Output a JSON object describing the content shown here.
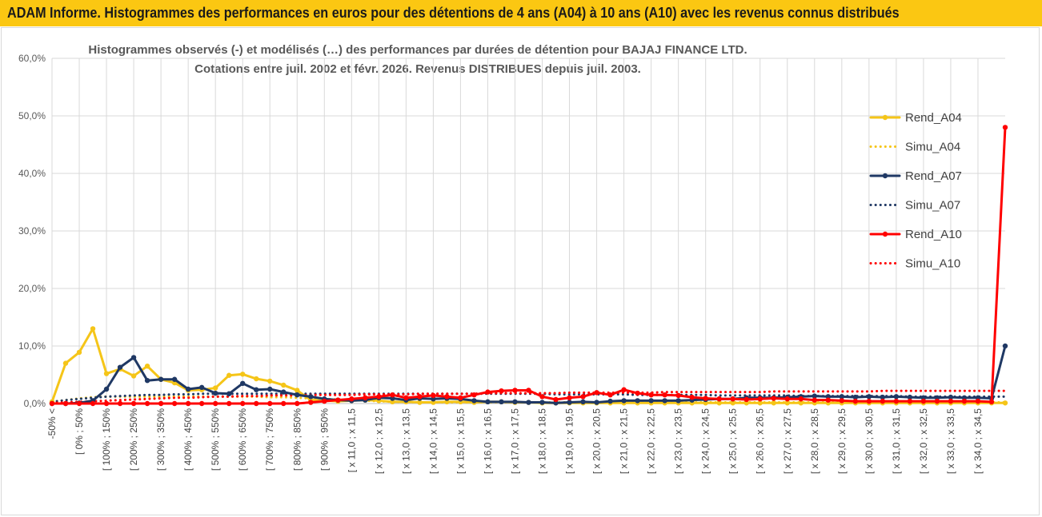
{
  "banner": {
    "text": "ADAM Informe. Histogrammes des performances en euros pour des détentions de 4 ans (A04) à 10 ans (A10) avec les revenus connus distribués",
    "color": "#fbc712"
  },
  "chart_data": {
    "type": "line",
    "title_lines": [
      "Histogrammes observés (-) et modélisés (…) des performances par durées de détention pour BAJAJ FINANCE LTD.",
      "Cotations entre juil. 2002 et févr. 2026. Revenus DISTRIBUES depuis juil. 2003."
    ],
    "ylim": [
      0,
      60
    ],
    "ytick_labels": [
      "0,0%",
      "10,0%",
      "20,0%",
      "30,0%",
      "40,0%",
      "50,0%",
      "60,0%"
    ],
    "grid": true,
    "legend_position": "right",
    "x_tick_labels": [
      "-50% <",
      "[ 0% ; 50%",
      "[ 100% ; 150%",
      "[ 200% ; 250%",
      "[ 300% ; 350%",
      "[ 400% ; 450%",
      "[ 500% ; 550%",
      "[ 600% ; 650%",
      "[ 700% ; 750%",
      "[ 800% ; 850%",
      "[ 900% ; 950%",
      "[ x 11,0 ; x 11,5",
      "[ x 12,0 ; x 12,5",
      "[ x 13,0 ; x 13,5",
      "[ x 14,0 ; x 14,5",
      "[ x 15,0 ; x 15,5",
      "[ x 16,0 ; x 16,5",
      "[ x 17,0 ; x 17,5",
      "[ x 18,0 ; x 18,5",
      "[ x 19,0 ; x 19,5",
      "[ x 20,0 ; x 20,5",
      "[ x 21,0 ; x 21,5",
      "[ x 22,0 ; x 22,5",
      "[ x 23,0 ; x 23,5",
      "[ x 24,0 ; x 24,5",
      "[ x 25,0 ; x 25,5",
      "[ x 26,0 ; x 26,5",
      "[ x 27,0 ; x 27,5",
      "[ x 28,0 ; x 28,5",
      "[ x 29,0 ; x 29,5",
      "[ x 30,0 ; x 30,5",
      "[ x 31,0 ; x 31,5",
      "[ x 32,0 ; x 32,5",
      "[ x 33,0 ; x 33,5",
      "[ x 34,0 ; x 34,5"
    ],
    "series": [
      {
        "name": "Rend_A04",
        "color": "#f5c518",
        "style": "solid",
        "values": [
          0.3,
          7.0,
          8.9,
          13.0,
          5.2,
          6.0,
          4.8,
          6.5,
          4.2,
          3.6,
          2.3,
          2.4,
          2.7,
          4.9,
          5.1,
          4.3,
          3.9,
          3.2,
          2.3,
          0.6,
          0.5,
          0.4,
          0.5,
          0.6,
          0.5,
          0.3,
          0.3,
          0.2,
          0.2,
          0.3,
          0.3,
          0.2,
          0.3,
          0.3,
          0.2,
          0.2,
          0.1,
          0.1,
          0.1,
          0.1,
          0.1,
          0.1,
          0.1,
          0.1,
          0.1,
          0.1,
          0.1,
          0.1,
          0.1,
          0.1,
          0.1,
          0.1,
          0.1,
          0.1,
          0.1,
          0.1,
          0.1,
          0.1,
          0.1,
          0.1,
          0.1,
          0.1,
          0.1,
          0.1,
          0.1,
          0.1,
          0.1,
          0.1,
          0.1,
          0.1,
          0.1
        ]
      },
      {
        "name": "Simu_A04",
        "color": "#f5c518",
        "style": "dotted",
        "values": [
          0.3,
          0.6,
          0.9,
          1.1,
          1.2,
          1.2,
          1.2,
          1.2,
          1.2,
          1.2,
          1.2,
          1.2,
          1.2,
          1.2,
          1.2,
          1.2,
          1.1,
          1.1,
          1.0,
          0.9,
          0.8,
          0.7,
          0.6,
          0.5,
          0.4,
          0.3,
          0.3,
          0.2,
          0.2,
          0.2,
          0.2,
          0.2,
          0.2,
          0.2,
          0.2,
          0.2,
          0.2,
          0.2,
          0.2,
          0.2,
          0.2,
          0.2,
          0.2,
          0.2,
          0.2,
          0.2,
          0.2,
          0.2,
          0.2,
          0.2,
          0.2,
          0.2,
          0.2,
          0.2,
          0.2,
          0.2,
          0.2,
          0.2,
          0.2,
          0.2,
          0.2,
          0.2,
          0.2,
          0.2,
          0.2,
          0.2,
          0.2,
          0.2,
          0.2,
          0.2,
          0.2
        ]
      },
      {
        "name": "Rend_A07",
        "color": "#1f3864",
        "style": "solid",
        "values": [
          0.0,
          0.0,
          0.1,
          0.5,
          2.5,
          6.3,
          8.0,
          4.0,
          4.2,
          4.2,
          2.5,
          2.8,
          1.8,
          1.7,
          3.5,
          2.4,
          2.5,
          2.0,
          1.5,
          1.2,
          0.8,
          0.6,
          0.5,
          0.6,
          1.0,
          0.9,
          0.6,
          0.9,
          0.8,
          0.9,
          0.8,
          0.5,
          0.3,
          0.3,
          0.3,
          0.2,
          0.2,
          0.1,
          0.2,
          0.3,
          0.2,
          0.4,
          0.5,
          0.5,
          0.5,
          0.5,
          0.5,
          0.6,
          0.7,
          0.8,
          0.8,
          1.0,
          1.0,
          1.0,
          1.1,
          1.2,
          1.3,
          1.2,
          1.2,
          1.1,
          1.2,
          1.1,
          1.2,
          1.1,
          1.0,
          1.0,
          1.1,
          1.0,
          1.0,
          0.9,
          10.0
        ]
      },
      {
        "name": "Simu_A07",
        "color": "#1f3864",
        "style": "dotted",
        "values": [
          0.3,
          0.6,
          0.8,
          1.0,
          1.2,
          1.3,
          1.4,
          1.5,
          1.5,
          1.6,
          1.6,
          1.7,
          1.7,
          1.7,
          1.7,
          1.7,
          1.7,
          1.7,
          1.7,
          1.7,
          1.7,
          1.7,
          1.7,
          1.7,
          1.7,
          1.7,
          1.7,
          1.7,
          1.7,
          1.7,
          1.7,
          1.7,
          1.7,
          1.7,
          1.7,
          1.7,
          1.7,
          1.6,
          1.6,
          1.6,
          1.6,
          1.6,
          1.6,
          1.5,
          1.5,
          1.5,
          1.5,
          1.5,
          1.5,
          1.4,
          1.4,
          1.4,
          1.4,
          1.4,
          1.4,
          1.3,
          1.3,
          1.3,
          1.3,
          1.3,
          1.3,
          1.3,
          1.3,
          1.2,
          1.2,
          1.2,
          1.2,
          1.2,
          1.2,
          1.2,
          1.2
        ]
      },
      {
        "name": "Rend_A10",
        "color": "#ff0000",
        "style": "solid",
        "values": [
          0.0,
          0.0,
          0.0,
          0.0,
          0.0,
          0.0,
          0.0,
          0.0,
          0.0,
          0.0,
          0.0,
          0.0,
          0.0,
          0.0,
          0.0,
          0.0,
          0.0,
          0.0,
          0.0,
          0.2,
          0.4,
          0.6,
          0.8,
          1.0,
          1.2,
          1.5,
          1.0,
          1.2,
          1.4,
          1.2,
          1.0,
          1.5,
          2.0,
          2.2,
          2.3,
          2.3,
          1.2,
          0.7,
          1.0,
          1.2,
          1.9,
          1.5,
          2.4,
          1.8,
          1.5,
          1.5,
          1.4,
          1.1,
          0.9,
          0.8,
          0.8,
          0.7,
          0.8,
          0.9,
          0.8,
          0.8,
          0.6,
          0.6,
          0.5,
          0.4,
          0.4,
          0.4,
          0.4,
          0.4,
          0.4,
          0.4,
          0.4,
          0.4,
          0.4,
          0.3,
          48.0
        ]
      },
      {
        "name": "Simu_A10",
        "color": "#ff0000",
        "style": "dotted",
        "values": [
          0.1,
          0.2,
          0.3,
          0.4,
          0.5,
          0.6,
          0.7,
          0.8,
          0.9,
          1.0,
          1.0,
          1.1,
          1.2,
          1.2,
          1.3,
          1.3,
          1.4,
          1.4,
          1.4,
          1.5,
          1.5,
          1.5,
          1.5,
          1.6,
          1.6,
          1.6,
          1.6,
          1.7,
          1.7,
          1.7,
          1.7,
          1.7,
          1.8,
          1.8,
          1.8,
          1.8,
          1.8,
          1.8,
          1.9,
          1.9,
          1.9,
          1.9,
          1.9,
          1.9,
          1.9,
          2.0,
          2.0,
          2.0,
          2.0,
          2.0,
          2.0,
          2.0,
          2.0,
          2.1,
          2.1,
          2.1,
          2.1,
          2.1,
          2.1,
          2.1,
          2.1,
          2.2,
          2.2,
          2.2,
          2.2,
          2.2,
          2.2,
          2.2,
          2.2,
          2.2,
          2.2
        ]
      }
    ]
  }
}
